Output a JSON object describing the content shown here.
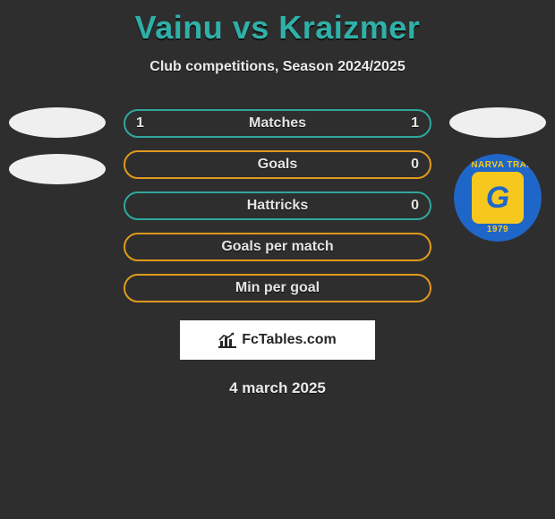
{
  "title": "Vainu vs Kraizmer",
  "subtitle": "Club competitions, Season 2024/2025",
  "date": "4 march 2025",
  "colors": {
    "title": "#2fb0a8",
    "text": "#eaeaea",
    "row_border_teal": "#2fa79f",
    "row_border_orange": "#e09a1e",
    "attr_bg": "#ffffff",
    "attr_text": "#262626",
    "badge_ring": "#1f66c9",
    "badge_inner": "#f6c81e",
    "badge_text": "#f6c81e",
    "badge_g": "#1f66c9"
  },
  "rows": [
    {
      "label": "Matches",
      "left": "1",
      "right": "1",
      "border": "teal"
    },
    {
      "label": "Goals",
      "left": "",
      "right": "0",
      "border": "orange"
    },
    {
      "label": "Hattricks",
      "left": "",
      "right": "0",
      "border": "teal"
    },
    {
      "label": "Goals per match",
      "left": "",
      "right": "",
      "border": "orange"
    },
    {
      "label": "Min per goal",
      "left": "",
      "right": "",
      "border": "orange"
    }
  ],
  "attribution": {
    "text": "FcTables.com"
  },
  "left_side": {
    "placeholders": 2
  },
  "right_side": {
    "placeholders": 1,
    "badge": {
      "top_text": "FC NARVA TRANS",
      "bottom_text": "1979",
      "letter": "G"
    }
  }
}
